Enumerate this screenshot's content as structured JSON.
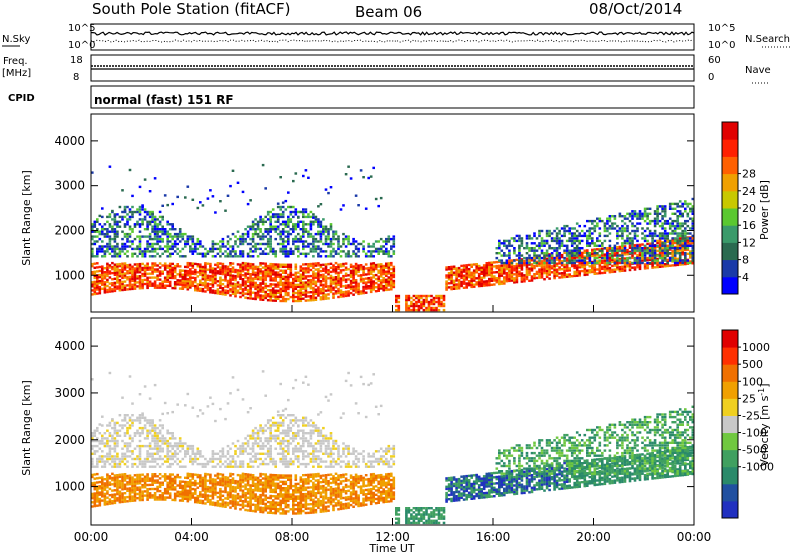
{
  "header": {
    "title": "South Pole Station (fitACF)",
    "beam": "Beam 06",
    "date": "08/Oct/2014"
  },
  "panels": {
    "nsky_label": "N.Sky",
    "nsearch_label": "N.Search",
    "count_ticks_left": [
      "10^5",
      "10^0"
    ],
    "count_ticks_right": [
      "10^5",
      "10^0"
    ],
    "freq_label": "Freq.",
    "freq_unit": "[MHz]",
    "freq_ticks": [
      "18",
      "8"
    ],
    "nave_label": "Nave",
    "nave_ticks": [
      "60",
      "0"
    ],
    "cpid_label": "CPID",
    "cpid_text": "normal (fast) 151 RF"
  },
  "chart_data": [
    {
      "type": "heatmap",
      "name": "power",
      "ylabel": "Slant Range [km]",
      "yticks": [
        "1000",
        "2000",
        "3000",
        "4000"
      ],
      "ylim": [
        180,
        4600
      ],
      "xlim": [
        "00:00",
        "24:00"
      ],
      "colorbar": {
        "label": "Power [dB]",
        "ticks": [
          "4",
          "8",
          "12",
          "16",
          "20",
          "24",
          "28"
        ],
        "colors": [
          "#0000ff",
          "#1a3aa8",
          "#2a6a50",
          "#3a9a6a",
          "#5ac830",
          "#c8c800",
          "#f0a000",
          "#ff6000",
          "#ff2000",
          "#e00000"
        ]
      }
    },
    {
      "type": "heatmap",
      "name": "velocity",
      "ylabel": "Slant Range [km]",
      "yticks": [
        "1000",
        "2000",
        "3000",
        "4000"
      ],
      "ylim": [
        180,
        4600
      ],
      "xlim": [
        "00:00",
        "24:00"
      ],
      "xticks": [
        "00:00",
        "04:00",
        "08:00",
        "12:00",
        "16:00",
        "20:00",
        "00:00"
      ],
      "xlabel": "Time UT",
      "colorbar": {
        "label": "Velocity [m s",
        "label_sup": "-1",
        "label_end": "]",
        "ticks": [
          "1000",
          "500",
          "100",
          "25",
          "-25",
          "-100",
          "-500",
          "-1000"
        ],
        "colors": [
          "#2030c0",
          "#2050a0",
          "#2a8a6a",
          "#40a060",
          "#70c840",
          "#c8c8c8",
          "#f0d020",
          "#f0a000",
          "#f07000",
          "#ff3000",
          "#e00000"
        ]
      }
    }
  ]
}
